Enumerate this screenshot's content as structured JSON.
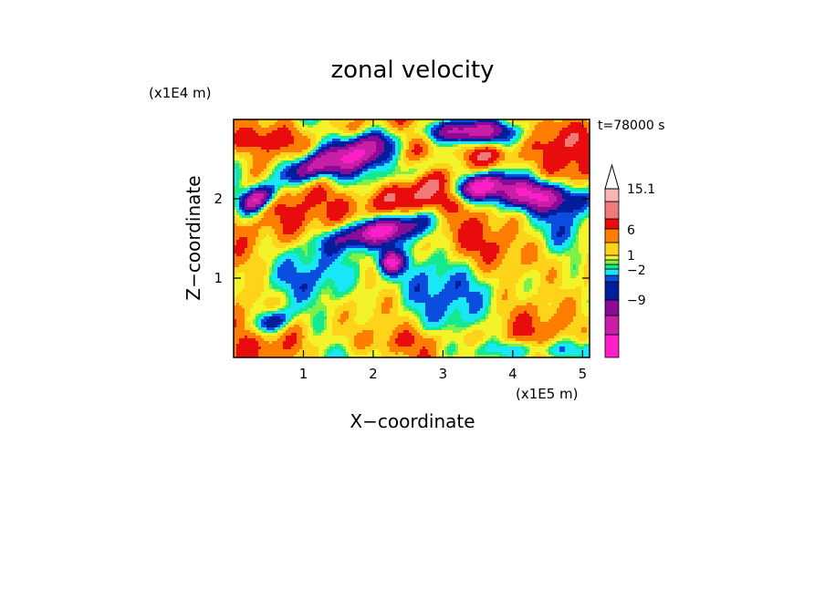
{
  "chart_data": {
    "type": "heatmap",
    "title": "zonal velocity",
    "xlabel": "X−coordinate",
    "ylabel": "Z−coordinate",
    "x_unit": "(x1E5 m)",
    "y_unit": "(x1E4 m)",
    "time_label": "t=78000 s",
    "xlim": [
      0,
      5.1
    ],
    "ylim": [
      0,
      3.0
    ],
    "x_ticks": [
      "1",
      "2",
      "3",
      "4",
      "5"
    ],
    "y_ticks": [
      "1",
      "2"
    ],
    "x_tick_values": [
      1,
      2,
      3,
      4,
      5
    ],
    "y_tick_values": [
      1,
      2
    ],
    "colorbar": {
      "levels": [
        {
          "color": "#ff1fc8"
        },
        {
          "color": "#c81ea8"
        },
        {
          "color": "#8b0a98"
        },
        {
          "color": "#001e9c"
        },
        {
          "color": "#0a4ee0"
        },
        {
          "color": "#19e6f6"
        },
        {
          "color": "#16e890"
        },
        {
          "color": "#7ef04a"
        },
        {
          "color": "#f3f32a"
        },
        {
          "color": "#ffd31a"
        },
        {
          "color": "#ff7d00"
        },
        {
          "color": "#e80c0c"
        },
        {
          "color": "#f07a78"
        },
        {
          "color": "#fab4b6"
        }
      ],
      "labels": [
        "15.1",
        "6",
        "1",
        "−2",
        "−9"
      ],
      "label_values": [
        15.1,
        6,
        1,
        -2,
        -9
      ],
      "overflow_arrow": "up"
    },
    "field_features": [
      {
        "value": -12,
        "x": 1.9,
        "y": 2.6,
        "sx": 0.35,
        "sy": 0.18,
        "tilt": 0.4
      },
      {
        "value": -12,
        "x": 1.1,
        "y": 2.4,
        "sx": 0.35,
        "sy": 0.12,
        "tilt": 0.3
      },
      {
        "value": -12,
        "x": 0.35,
        "y": 2.0,
        "sx": 0.2,
        "sy": 0.1,
        "tilt": 0.4
      },
      {
        "value": -12,
        "x": 4.3,
        "y": 2.05,
        "sx": 0.55,
        "sy": 0.14,
        "tilt": -0.08
      },
      {
        "value": -10,
        "x": 3.5,
        "y": 2.15,
        "sx": 0.25,
        "sy": 0.1,
        "tilt": 0.2
      },
      {
        "value": -12,
        "x": 2.1,
        "y": 1.6,
        "sx": 0.55,
        "sy": 0.12,
        "tilt": 0.18
      },
      {
        "value": -10,
        "x": 3.35,
        "y": 2.85,
        "sx": 0.45,
        "sy": 0.1,
        "tilt": 0.0
      },
      {
        "value": -10,
        "x": 2.25,
        "y": 1.2,
        "sx": 0.12,
        "sy": 0.1,
        "tilt": 0.0
      },
      {
        "value": -8,
        "x": 0.55,
        "y": 0.45,
        "sx": 0.18,
        "sy": 0.1,
        "tilt": 0.3
      },
      {
        "value": 12,
        "x": 2.4,
        "y": 2.0,
        "sx": 0.6,
        "sy": 0.22,
        "tilt": 0.2
      },
      {
        "value": 12,
        "x": 3.6,
        "y": 2.55,
        "sx": 0.3,
        "sy": 0.12,
        "tilt": 0.0
      },
      {
        "value": 8,
        "x": 0.4,
        "y": 2.75,
        "sx": 0.4,
        "sy": 0.12,
        "tilt": 0.0
      },
      {
        "value": 8,
        "x": 4.8,
        "y": 2.75,
        "sx": 0.3,
        "sy": 0.2,
        "tilt": 0.0
      },
      {
        "value": 7,
        "x": 4.3,
        "y": 1.25,
        "sx": 0.7,
        "sy": 0.22,
        "tilt": -0.1
      },
      {
        "value": 8,
        "x": 0.6,
        "y": 1.35,
        "sx": 0.45,
        "sy": 0.35,
        "tilt": 0.0
      },
      {
        "value": 6,
        "x": 2.6,
        "y": 0.2,
        "sx": 0.9,
        "sy": 0.12,
        "tilt": 0.0
      },
      {
        "value": 6,
        "x": 1.8,
        "y": 2.9,
        "sx": 0.5,
        "sy": 0.1,
        "tilt": 0.0
      },
      {
        "value": -3,
        "x": 1.2,
        "y": 1.05,
        "sx": 0.55,
        "sy": 0.28,
        "tilt": -0.1
      },
      {
        "value": -3,
        "x": 4.3,
        "y": 0.1,
        "sx": 0.8,
        "sy": 0.1,
        "tilt": 0.0
      },
      {
        "value": -2,
        "x": 2.6,
        "y": 2.35,
        "sx": 0.5,
        "sy": 0.1,
        "tilt": 0.3
      },
      {
        "value": -1,
        "x": 2.9,
        "y": 1.0,
        "sx": 0.9,
        "sy": 0.35,
        "tilt": 0.0
      },
      {
        "value": -1,
        "x": 4.8,
        "y": 1.7,
        "sx": 0.3,
        "sy": 0.25,
        "tilt": 0.0
      }
    ]
  }
}
